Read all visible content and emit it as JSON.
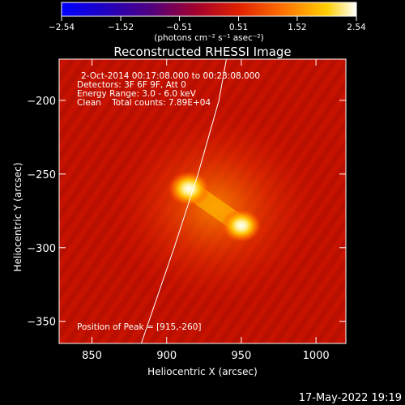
{
  "colorbar": {
    "ticks": [
      "-2.54",
      "-1.52",
      "-0.51",
      "0.51",
      "1.52",
      "2.54"
    ],
    "range": [
      -2.54,
      2.54
    ],
    "unit_label": "(photons cm⁻² s⁻¹ asec⁻²)"
  },
  "footer": {
    "timestamp": "17-May-2022 19:19"
  },
  "chart_data": {
    "type": "heatmap",
    "title": "Reconstructed RHESSI Image",
    "xlabel": "Heliocentric X (arcsec)",
    "ylabel": "Heliocentric Y (arcsec)",
    "xlim": [
      828,
      1020
    ],
    "ylim": [
      -365,
      -172
    ],
    "xticks": [
      850,
      900,
      950,
      1000
    ],
    "yticks": [
      -200,
      -250,
      -300,
      -350
    ],
    "colormap": "red-temperature (black-red-orange-yellow-white)",
    "info_lines": [
      "2-Oct-2014 00:17:08.000 to 00:23:08.000",
      "Detectors: 3F 6F 9F, Att 0",
      "Energy Range: 3.0 - 6.0 keV",
      "Clean    Total counts: 7.89E+04"
    ],
    "peak_label": "Position of Peak = [915,-260]",
    "sources": [
      {
        "x": 915,
        "y": -260,
        "relative_intensity": 1.0
      },
      {
        "x": 950,
        "y": -285,
        "relative_intensity": 0.95
      }
    ],
    "limb_curve": [
      [
        883,
        -365
      ],
      [
        905,
        -300
      ],
      [
        921,
        -250
      ],
      [
        935,
        -200
      ],
      [
        940,
        -172
      ]
    ]
  }
}
